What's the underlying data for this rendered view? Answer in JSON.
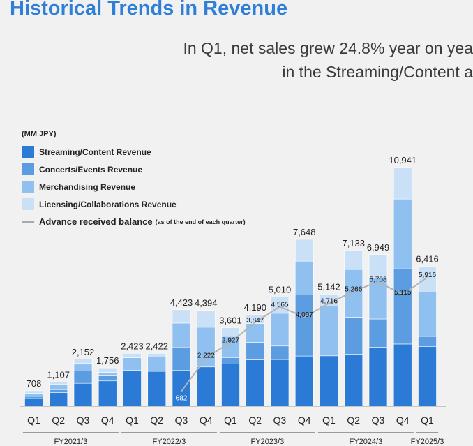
{
  "header": {
    "title": "Historical Trends in Revenue",
    "subtitle_line1": "In Q1, net sales grew 24.8% year on yea",
    "subtitle_line2": "in the Streaming/Content a"
  },
  "chart_data": {
    "type": "bar",
    "stacked": true,
    "unit_label": "(MM JPY)",
    "categories": [
      "Q1",
      "Q2",
      "Q3",
      "Q4",
      "Q1",
      "Q2",
      "Q3",
      "Q4",
      "Q1",
      "Q2",
      "Q3",
      "Q4",
      "Q1",
      "Q2",
      "Q3",
      "Q4",
      "Q1"
    ],
    "fiscal_years": [
      {
        "label": "FY2021/3",
        "start": 0,
        "end": 3
      },
      {
        "label": "FY2022/3",
        "start": 4,
        "end": 7
      },
      {
        "label": "FY2023/3",
        "start": 8,
        "end": 11
      },
      {
        "label": "FY2024/3",
        "start": 12,
        "end": 15
      },
      {
        "label": "FY2025/3",
        "start": 16,
        "end": 16
      }
    ],
    "totals": [
      708,
      1107,
      2152,
      1756,
      2423,
      2422,
      4423,
      4394,
      3601,
      4190,
      5010,
      7648,
      5142,
      7133,
      6949,
      10941,
      6416
    ],
    "total_labels": [
      "708",
      "1,107",
      "2,152",
      "1,756",
      "2,423",
      "2,422",
      "4,423",
      "4,394",
      "3,601",
      "4,190",
      "5,010",
      "7,648",
      "5,142",
      "7,133",
      "6,949",
      "10,941",
      "6,416"
    ],
    "series": [
      {
        "name": "Streaming/Content Revenue",
        "color": "#2a7ad6",
        "values": [
          350,
          620,
          1050,
          1160,
          1650,
          1600,
          1640,
          1800,
          1930,
          2130,
          2140,
          2300,
          2310,
          2380,
          2700,
          2850,
          2730
        ]
      },
      {
        "name": "Concerts/Events Revenue",
        "color": "#5b9de0",
        "values": [
          100,
          140,
          570,
          260,
          0,
          0,
          1050,
          0,
          300,
          800,
          620,
          2800,
          0,
          1700,
          1300,
          3450,
          470
        ]
      },
      {
        "name": "Merchandising Revenue",
        "color": "#8fc0ef",
        "values": [
          140,
          240,
          340,
          130,
          570,
          650,
          1120,
          1820,
          970,
          860,
          1500,
          1550,
          2280,
          2190,
          1890,
          3200,
          2030
        ]
      },
      {
        "name": "Licensing/Collaborations Revenue",
        "color": "#c9e0f7",
        "values": [
          118,
          107,
          192,
          206,
          203,
          172,
          613,
          774,
          401,
          400,
          750,
          998,
          552,
          863,
          1059,
          1441,
          1186
        ]
      }
    ],
    "line_series": {
      "name": "Advance received balance",
      "name_note": "(as of the end of each quarter)",
      "color": "#b4b4b4",
      "start_index": 6,
      "values": [
        682,
        2222,
        2927,
        3847,
        4565,
        4097,
        4716,
        5266,
        5708,
        5115,
        5916
      ],
      "value_labels": [
        "682",
        "2,222",
        "2,927",
        "3,847",
        "4,565",
        "4,097",
        "4,716",
        "5,266",
        "5,708",
        "5,115",
        "5,916"
      ]
    },
    "ylim": [
      0,
      12000
    ]
  }
}
